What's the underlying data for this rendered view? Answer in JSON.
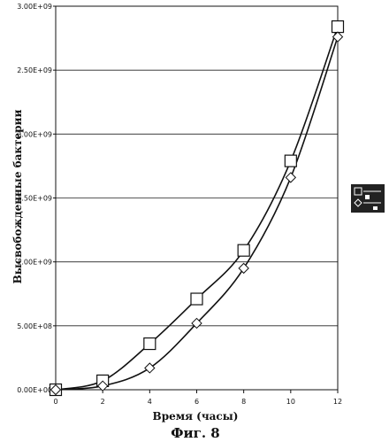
{
  "chart_data": {
    "type": "scatter",
    "xlabel": "Время (часы)",
    "ylabel": "Высвобожденные бактерии",
    "caption": "Фиг. 8",
    "xlim": [
      0,
      12
    ],
    "ylim": [
      0,
      3000000000
    ],
    "x_ticks": [
      0,
      2,
      4,
      6,
      8,
      10,
      12
    ],
    "y_ticks": [
      0,
      500000000,
      1000000000,
      1500000000,
      2000000000,
      2500000000,
      3000000000
    ],
    "x_tick_labels": [
      "0",
      "2",
      "4",
      "6",
      "8",
      "10",
      "12"
    ],
    "y_tick_labels": [
      "0.00E+00",
      "5.00E+08",
      "1.00E+09",
      "1.50E+09",
      "2.00E+09",
      "2.50E+09",
      "3.00E+09"
    ],
    "grid": "horizontal",
    "legend": "right",
    "series": [
      {
        "marker": "square",
        "x": [
          0,
          2,
          4,
          6,
          8,
          10,
          12
        ],
        "values": [
          0,
          70000000,
          360000000,
          710000000,
          1090000000,
          1790000000,
          2840000000
        ]
      },
      {
        "marker": "diamond",
        "x": [
          0,
          2,
          4,
          6,
          8,
          10,
          12
        ],
        "values": [
          0,
          30000000,
          170000000,
          520000000,
          950000000,
          1660000000,
          2760000000
        ]
      }
    ]
  }
}
